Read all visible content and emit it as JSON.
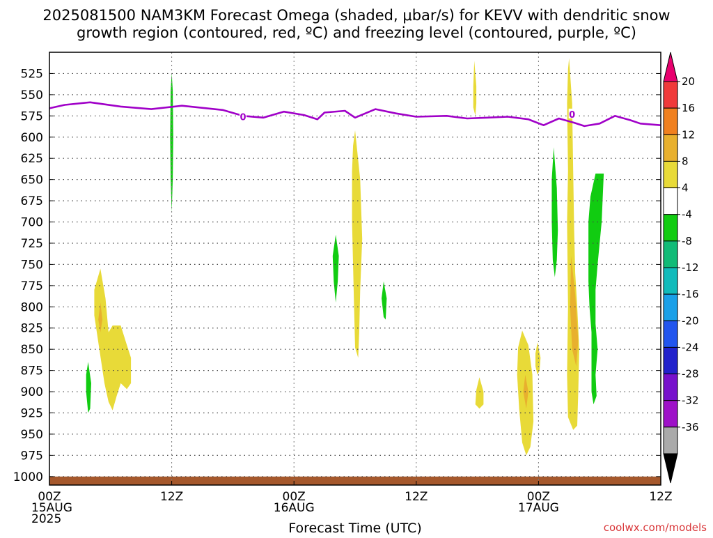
{
  "title_line1": "2025081500 NAM3KM Forecast Omega (shaded, μbar/s) for KEVV with dendritic snow",
  "title_line2": "growth region (contoured, red, ºC) and freezing level (contoured, purple, ºC)",
  "credit": "coolwx.com/models",
  "chart_data": {
    "type": "heatmap",
    "title": "2025081500 NAM3KM Forecast Omega (shaded, μbar/s) for KEVV with dendritic snow growth region (contoured, red, ºC) and freezing level (contoured, purple, ºC)",
    "xlabel": "Forecast Time (UTC)",
    "ylabel": "",
    "x_range_hours": [
      0,
      60
    ],
    "y_range_mb": [
      1010,
      500
    ],
    "y_ticks": [
      525,
      550,
      575,
      600,
      625,
      650,
      675,
      700,
      725,
      750,
      775,
      800,
      825,
      850,
      875,
      900,
      925,
      950,
      975,
      1000
    ],
    "x_ticks": [
      {
        "h": 0,
        "lines": [
          "00Z",
          "15AUG",
          "2025"
        ]
      },
      {
        "h": 12,
        "lines": [
          "12Z"
        ]
      },
      {
        "h": 24,
        "lines": [
          "00Z",
          "16AUG"
        ]
      },
      {
        "h": 36,
        "lines": [
          "12Z"
        ]
      },
      {
        "h": 48,
        "lines": [
          "00Z",
          "17AUG"
        ]
      },
      {
        "h": 60,
        "lines": [
          "12Z"
        ]
      }
    ],
    "grid": true,
    "colorbar": {
      "labels": [
        "20",
        "16",
        "12",
        "8",
        "4",
        "-4",
        "-8",
        "-12",
        "-16",
        "-20",
        "-24",
        "-28",
        "-32",
        "-36"
      ],
      "colors": [
        "#e8006e",
        "#f03a3a",
        "#f0801f",
        "#e8b02e",
        "#e8da38",
        "#ffffff",
        "#11cc11",
        "#11bb77",
        "#11bbbb",
        "#1aa0e8",
        "#2255ee",
        "#2222cc",
        "#7711cc",
        "#9e11c8",
        "#aaaaaa",
        "#000000"
      ]
    },
    "freezing_level": {
      "label": "0",
      "color": "#a000c8",
      "points": [
        [
          0,
          566
        ],
        [
          1.5,
          562
        ],
        [
          4,
          559
        ],
        [
          7,
          564
        ],
        [
          10,
          567
        ],
        [
          13,
          563
        ],
        [
          17,
          568
        ],
        [
          19,
          575
        ],
        [
          21,
          577
        ],
        [
          23,
          570
        ],
        [
          25,
          574
        ],
        [
          26.3,
          579
        ],
        [
          27,
          571
        ],
        [
          29,
          569
        ],
        [
          30,
          577
        ],
        [
          32,
          567
        ],
        [
          34,
          572
        ],
        [
          36,
          576
        ],
        [
          39,
          575
        ],
        [
          41,
          578
        ],
        [
          43,
          577
        ],
        [
          45,
          576
        ],
        [
          47,
          579
        ],
        [
          48.5,
          586
        ],
        [
          50,
          578
        ],
        [
          51.5,
          583
        ],
        [
          52.5,
          587
        ],
        [
          54,
          584
        ],
        [
          55.5,
          575
        ],
        [
          57,
          580
        ],
        [
          58,
          584
        ],
        [
          60,
          586
        ]
      ],
      "label_points": [
        [
          19,
          576
        ],
        [
          51.3,
          573
        ]
      ]
    },
    "omega_regions": [
      {
        "color": "#11cc11",
        "label": "-8",
        "points": [
          [
            12.0,
            525
          ],
          [
            12.1,
            545
          ],
          [
            12.15,
            600
          ],
          [
            12.1,
            650
          ],
          [
            12.0,
            688
          ],
          [
            11.9,
            650
          ],
          [
            11.85,
            600
          ],
          [
            11.9,
            545
          ]
        ]
      },
      {
        "color": "#11cc11",
        "label": "-8",
        "points": [
          [
            3.8,
            865
          ],
          [
            4.1,
            890
          ],
          [
            4.0,
            920
          ],
          [
            3.8,
            925
          ],
          [
            3.6,
            900
          ],
          [
            3.6,
            880
          ]
        ]
      },
      {
        "color": "#e8da38",
        "label": "8",
        "points": [
          [
            5.0,
            755
          ],
          [
            5.5,
            790
          ],
          [
            5.8,
            830
          ],
          [
            6.2,
            822
          ],
          [
            7.0,
            822
          ],
          [
            7.6,
            845
          ],
          [
            8.0,
            860
          ],
          [
            8.0,
            890
          ],
          [
            7.6,
            897
          ],
          [
            7.0,
            890
          ],
          [
            6.6,
            905
          ],
          [
            6.2,
            922
          ],
          [
            5.8,
            912
          ],
          [
            5.4,
            890
          ],
          [
            4.9,
            850
          ],
          [
            4.4,
            810
          ],
          [
            4.4,
            780
          ]
        ]
      },
      {
        "color": "#e8b02e",
        "label": "8",
        "points": [
          [
            5.0,
            795
          ],
          [
            5.2,
            815
          ],
          [
            5.0,
            830
          ],
          [
            4.8,
            815
          ]
        ]
      },
      {
        "color": "#11cc11",
        "label": "-8",
        "points": [
          [
            28.1,
            715
          ],
          [
            28.4,
            740
          ],
          [
            28.3,
            770
          ],
          [
            28.1,
            795
          ],
          [
            27.9,
            770
          ],
          [
            27.8,
            740
          ]
        ]
      },
      {
        "color": "#e8da38",
        "label": "8",
        "points": [
          [
            30.0,
            592
          ],
          [
            30.5,
            650
          ],
          [
            30.7,
            720
          ],
          [
            30.5,
            780
          ],
          [
            30.4,
            830
          ],
          [
            30.3,
            860
          ],
          [
            30.0,
            848
          ],
          [
            29.9,
            800
          ],
          [
            29.7,
            700
          ],
          [
            29.7,
            640
          ],
          [
            29.8,
            610
          ]
        ]
      },
      {
        "color": "#11cc11",
        "label": "-8",
        "points": [
          [
            32.8,
            770
          ],
          [
            33.1,
            790
          ],
          [
            33.0,
            815
          ],
          [
            32.8,
            812
          ],
          [
            32.6,
            790
          ]
        ]
      },
      {
        "color": "#e8da38",
        "label": "8",
        "points": [
          [
            41.7,
            510
          ],
          [
            41.9,
            540
          ],
          [
            41.9,
            560
          ],
          [
            41.8,
            575
          ],
          [
            41.6,
            565
          ],
          [
            41.6,
            540
          ]
        ]
      },
      {
        "color": "#e8da38",
        "label": "8",
        "points": [
          [
            42.2,
            883
          ],
          [
            42.6,
            900
          ],
          [
            42.6,
            915
          ],
          [
            42.2,
            920
          ],
          [
            41.8,
            915
          ],
          [
            41.9,
            898
          ]
        ]
      },
      {
        "color": "#e8da38",
        "label": "8",
        "points": [
          [
            46.4,
            828
          ],
          [
            47.0,
            845
          ],
          [
            47.4,
            880
          ],
          [
            47.5,
            935
          ],
          [
            47.2,
            965
          ],
          [
            46.8,
            975
          ],
          [
            46.4,
            960
          ],
          [
            46.1,
            920
          ],
          [
            45.9,
            880
          ],
          [
            46.0,
            848
          ]
        ]
      },
      {
        "color": "#e8b02e",
        "label": "8",
        "points": [
          [
            46.7,
            880
          ],
          [
            47.0,
            900
          ],
          [
            46.8,
            920
          ],
          [
            46.5,
            900
          ]
        ]
      },
      {
        "color": "#e8da38",
        "label": "8",
        "points": [
          [
            47.9,
            842
          ],
          [
            48.2,
            860
          ],
          [
            48.1,
            875
          ],
          [
            47.9,
            880
          ],
          [
            47.7,
            870
          ],
          [
            47.7,
            855
          ]
        ]
      },
      {
        "color": "#11cc11",
        "label": "-8",
        "points": [
          [
            49.5,
            612
          ],
          [
            49.8,
            660
          ],
          [
            49.9,
            710
          ],
          [
            49.8,
            745
          ],
          [
            49.6,
            765
          ],
          [
            49.4,
            745
          ],
          [
            49.3,
            700
          ],
          [
            49.3,
            650
          ]
        ]
      },
      {
        "color": "#e8da38",
        "label": "8",
        "points": [
          [
            51.0,
            507
          ],
          [
            51.3,
            560
          ],
          [
            51.4,
            640
          ],
          [
            51.5,
            710
          ],
          [
            51.6,
            760
          ],
          [
            51.8,
            800
          ],
          [
            52.0,
            850
          ],
          [
            51.9,
            900
          ],
          [
            51.8,
            940
          ],
          [
            51.4,
            945
          ],
          [
            50.9,
            930
          ],
          [
            50.8,
            880
          ],
          [
            50.9,
            800
          ],
          [
            50.8,
            700
          ],
          [
            50.9,
            640
          ],
          [
            50.8,
            560
          ],
          [
            50.9,
            520
          ]
        ]
      },
      {
        "color": "#e8b02e",
        "label": "8",
        "points": [
          [
            51.2,
            740
          ],
          [
            51.6,
            785
          ],
          [
            51.9,
            840
          ],
          [
            51.7,
            870
          ],
          [
            51.3,
            850
          ],
          [
            51.1,
            800
          ]
        ]
      },
      {
        "color": "#11cc11",
        "label": "-8",
        "points": [
          [
            53.6,
            643
          ],
          [
            54.4,
            643
          ],
          [
            54.2,
            700
          ],
          [
            53.8,
            750
          ],
          [
            53.6,
            780
          ],
          [
            53.6,
            820
          ],
          [
            53.8,
            850
          ],
          [
            53.6,
            880
          ],
          [
            53.7,
            905
          ],
          [
            53.4,
            915
          ],
          [
            53.2,
            900
          ],
          [
            53.2,
            860
          ],
          [
            53.2,
            830
          ],
          [
            53.0,
            800
          ],
          [
            52.9,
            770
          ],
          [
            52.9,
            730
          ],
          [
            52.9,
            700
          ],
          [
            53.1,
            670
          ]
        ]
      }
    ],
    "ground_color": "#a5582c"
  }
}
